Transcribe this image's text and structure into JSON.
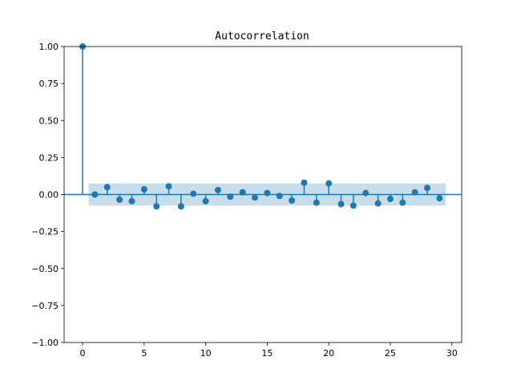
{
  "chart_data": {
    "type": "stem",
    "title": "Autocorrelation",
    "xlabel": "",
    "ylabel": "",
    "xlim": [
      -1.5,
      30.8
    ],
    "ylim": [
      -1.0,
      1.0
    ],
    "xticks": [
      0,
      5,
      10,
      15,
      20,
      25,
      30
    ],
    "yticks": [
      -1.0,
      -0.75,
      -0.5,
      -0.25,
      0.0,
      0.25,
      0.5,
      0.75,
      1.0
    ],
    "ytick_labels": [
      "−1.00",
      "−0.75",
      "−0.50",
      "−0.25",
      "0.00",
      "0.25",
      "0.50",
      "0.75",
      "1.00"
    ],
    "grid": false,
    "legend": "none",
    "lags": [
      0,
      1,
      2,
      3,
      4,
      5,
      6,
      7,
      8,
      9,
      10,
      11,
      12,
      13,
      14,
      15,
      16,
      17,
      18,
      19,
      20,
      21,
      22,
      23,
      24,
      25,
      26,
      27,
      28,
      29
    ],
    "acf": [
      1.0,
      0.0,
      0.05,
      -0.035,
      -0.045,
      0.035,
      -0.08,
      0.055,
      -0.08,
      0.005,
      -0.045,
      0.03,
      -0.015,
      0.015,
      -0.02,
      0.01,
      -0.01,
      -0.04,
      0.08,
      -0.055,
      0.075,
      -0.065,
      -0.075,
      0.01,
      -0.06,
      -0.03,
      -0.055,
      0.015,
      0.045,
      -0.025
    ],
    "confidence_band": {
      "x": [
        0.5,
        29.5
      ],
      "lower": [
        -0.075,
        -0.075
      ],
      "upper": [
        0.075,
        0.075
      ]
    },
    "colors": {
      "series": "#1f77b4",
      "band": "#1f77b4",
      "axis": "#000000"
    }
  }
}
